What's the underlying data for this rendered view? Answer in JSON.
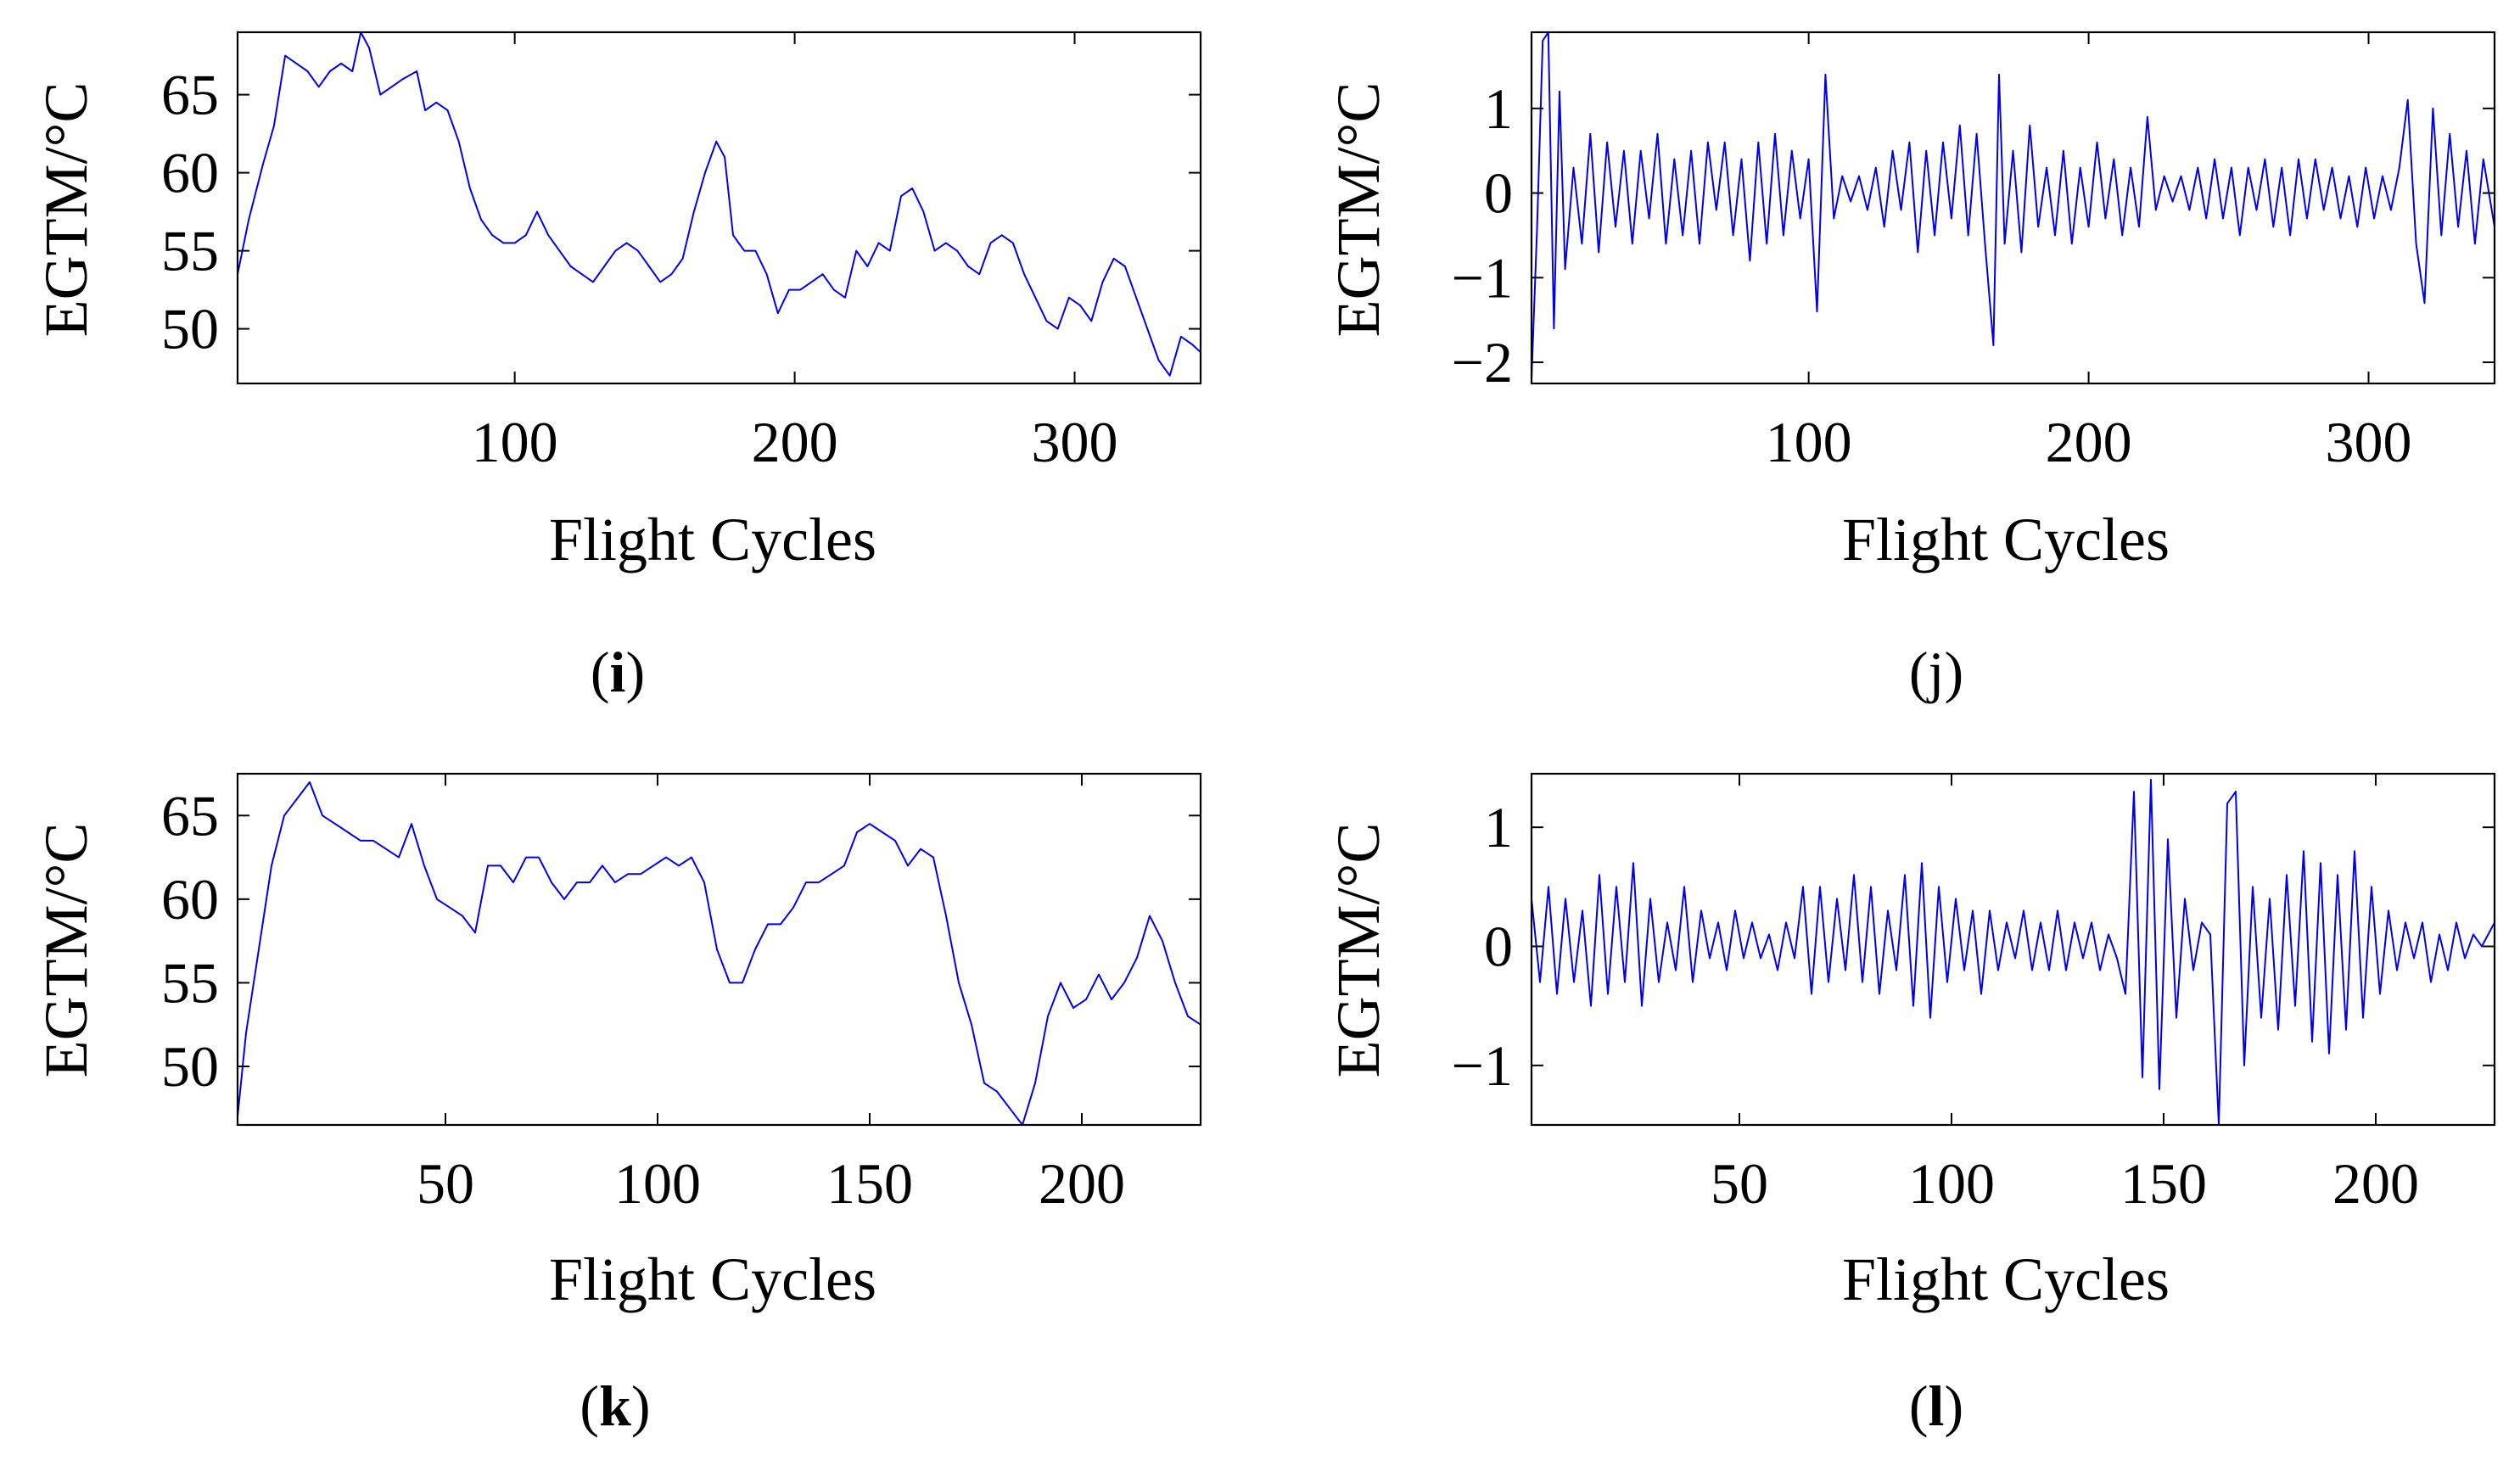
{
  "chart_data": [
    {
      "id": "i",
      "panel_label": "i",
      "type": "line",
      "xlabel": "Flight Cycles",
      "ylabel": "EGTM/°C",
      "xlim": [
        1,
        345
      ],
      "ylim": [
        46.5,
        69
      ],
      "xticks": [
        100,
        200,
        300
      ],
      "yticks": [
        50,
        55,
        60,
        65
      ],
      "line_color": "#0000ee",
      "series": [
        {
          "name": "EGTM",
          "x": [
            1,
            5,
            10,
            14,
            18,
            22,
            26,
            30,
            34,
            38,
            42,
            45,
            48,
            52,
            56,
            60,
            65,
            68,
            72,
            76,
            80,
            84,
            88,
            92,
            96,
            100,
            104,
            108,
            112,
            116,
            120,
            124,
            128,
            132,
            136,
            140,
            144,
            148,
            152,
            156,
            160,
            164,
            168,
            172,
            175,
            178,
            182,
            186,
            190,
            194,
            198,
            202,
            206,
            210,
            214,
            218,
            222,
            226,
            230,
            234,
            238,
            242,
            246,
            250,
            254,
            258,
            262,
            266,
            270,
            274,
            278,
            282,
            286,
            290,
            294,
            298,
            302,
            306,
            310,
            314,
            318,
            322,
            326,
            330,
            334,
            338,
            342,
            345
          ],
          "y": [
            53.5,
            57,
            60.5,
            63,
            67.5,
            67,
            66.5,
            65.5,
            66.5,
            67,
            66.5,
            69,
            68,
            65,
            65.5,
            66,
            66.5,
            64,
            64.5,
            64,
            62,
            59,
            57,
            56,
            55.5,
            55.5,
            56,
            57.5,
            56,
            55,
            54,
            53.5,
            53,
            54,
            55,
            55.5,
            55,
            54,
            53,
            53.5,
            54.5,
            57.5,
            60,
            62,
            61,
            56,
            55,
            55,
            53.5,
            51,
            52.5,
            52.5,
            53,
            53.5,
            52.5,
            52,
            55,
            54,
            55.5,
            55,
            58.5,
            59,
            57.5,
            55,
            55.5,
            55,
            54,
            53.5,
            55.5,
            56,
            55.5,
            53.5,
            52,
            50.5,
            50,
            52,
            51.5,
            50.5,
            53,
            54.5,
            54,
            52,
            50,
            48,
            47,
            49.5,
            49,
            48.5
          ]
        }
      ]
    },
    {
      "id": "j",
      "panel_label": "j",
      "type": "line",
      "xlabel": "Flight Cycles",
      "ylabel": "EGTM/°C",
      "xlim": [
        1,
        345
      ],
      "ylim": [
        -2.25,
        1.9
      ],
      "xticks": [
        100,
        200,
        300
      ],
      "yticks": [
        -2,
        -1,
        0,
        1
      ],
      "line_color": "#0000ee",
      "series": [
        {
          "name": "EGTM",
          "x": [
            1,
            3,
            5,
            7,
            9,
            11,
            13,
            16,
            19,
            22,
            25,
            28,
            31,
            34,
            37,
            40,
            43,
            46,
            49,
            52,
            55,
            58,
            61,
            64,
            67,
            70,
            73,
            76,
            79,
            82,
            85,
            88,
            91,
            94,
            97,
            100,
            103,
            106,
            109,
            112,
            115,
            118,
            121,
            124,
            127,
            130,
            133,
            136,
            139,
            142,
            145,
            148,
            151,
            154,
            157,
            160,
            163,
            166,
            168,
            170,
            173,
            176,
            179,
            182,
            185,
            188,
            191,
            194,
            197,
            200,
            203,
            206,
            209,
            212,
            215,
            218,
            221,
            224,
            227,
            230,
            233,
            236,
            239,
            242,
            245,
            248,
            251,
            254,
            257,
            260,
            263,
            266,
            269,
            272,
            275,
            278,
            281,
            284,
            287,
            290,
            293,
            296,
            299,
            302,
            305,
            308,
            311,
            314,
            317,
            320,
            323,
            326,
            329,
            332,
            335,
            338,
            341,
            345
          ],
          "y": [
            -2.2,
            -0.4,
            1.8,
            1.9,
            -1.6,
            1.2,
            -0.9,
            0.3,
            -0.6,
            0.7,
            -0.7,
            0.6,
            -0.4,
            0.5,
            -0.6,
            0.5,
            -0.3,
            0.7,
            -0.6,
            0.4,
            -0.5,
            0.5,
            -0.6,
            0.6,
            -0.2,
            0.6,
            -0.5,
            0.4,
            -0.8,
            0.6,
            -0.6,
            0.7,
            -0.5,
            0.5,
            -0.3,
            0.4,
            -1.4,
            1.4,
            -0.3,
            0.2,
            -0.1,
            0.2,
            -0.2,
            0.3,
            -0.4,
            0.5,
            -0.2,
            0.6,
            -0.7,
            0.5,
            -0.5,
            0.6,
            -0.3,
            0.8,
            -0.5,
            0.7,
            -0.6,
            -1.8,
            1.4,
            -0.6,
            0.5,
            -0.7,
            0.8,
            -0.4,
            0.3,
            -0.5,
            0.5,
            -0.6,
            0.3,
            -0.4,
            0.6,
            -0.3,
            0.4,
            -0.5,
            0.3,
            -0.4,
            0.9,
            -0.2,
            0.2,
            -0.1,
            0.2,
            -0.2,
            0.3,
            -0.3,
            0.4,
            -0.3,
            0.3,
            -0.5,
            0.3,
            -0.2,
            0.4,
            -0.4,
            0.3,
            -0.5,
            0.4,
            -0.3,
            0.4,
            -0.2,
            0.3,
            -0.3,
            0.2,
            -0.4,
            0.3,
            -0.3,
            0.2,
            -0.2,
            0.3,
            1.1,
            -0.6,
            -1.3,
            1.0,
            -0.5,
            0.7,
            -0.4,
            0.5,
            -0.6,
            0.4,
            -0.4
          ]
        }
      ]
    },
    {
      "id": "k",
      "panel_label": "k",
      "type": "line",
      "xlabel": "Flight Cycles",
      "ylabel": "EGTM/°C",
      "xlim": [
        1,
        228
      ],
      "ylim": [
        46.5,
        67.5
      ],
      "xticks": [
        50,
        100,
        150,
        200
      ],
      "yticks": [
        50,
        55,
        60,
        65
      ],
      "line_color": "#0000ee",
      "series": [
        {
          "name": "EGTM",
          "x": [
            1,
            3,
            6,
            9,
            12,
            15,
            18,
            21,
            24,
            27,
            30,
            33,
            36,
            39,
            42,
            45,
            48,
            51,
            54,
            57,
            60,
            63,
            66,
            69,
            72,
            75,
            78,
            81,
            84,
            87,
            90,
            93,
            96,
            99,
            102,
            105,
            108,
            111,
            114,
            117,
            120,
            123,
            126,
            129,
            132,
            135,
            138,
            141,
            144,
            147,
            150,
            153,
            156,
            159,
            162,
            165,
            168,
            171,
            174,
            177,
            180,
            183,
            186,
            189,
            192,
            195,
            198,
            201,
            204,
            207,
            210,
            213,
            216,
            219,
            222,
            225,
            228
          ],
          "y": [
            47,
            52,
            57,
            62,
            65,
            66,
            67,
            65,
            64.5,
            64,
            63.5,
            63.5,
            63,
            62.5,
            64.5,
            62,
            60,
            59.5,
            59,
            58,
            62,
            62,
            61,
            62.5,
            62.5,
            61,
            60,
            61,
            61,
            62,
            61,
            61.5,
            61.5,
            62,
            62.5,
            62,
            62.5,
            61,
            57,
            55,
            55,
            57,
            58.5,
            58.5,
            59.5,
            61,
            61,
            61.5,
            62,
            64,
            64.5,
            64,
            63.5,
            62,
            63,
            62.5,
            59,
            55,
            52.5,
            49,
            48.5,
            47.5,
            46.5,
            49,
            53,
            55,
            53.5,
            54,
            55.5,
            54,
            55,
            56.5,
            59,
            57.5,
            55,
            53,
            52.5
          ]
        }
      ]
    },
    {
      "id": "l",
      "panel_label": "l",
      "type": "line",
      "xlabel": "Flight Cycles",
      "ylabel": "EGTM/°C",
      "xlim": [
        1,
        228
      ],
      "ylim": [
        -1.5,
        1.45
      ],
      "xticks": [
        50,
        100,
        150,
        200
      ],
      "yticks": [
        -1,
        0,
        1
      ],
      "line_color": "#0000ee",
      "series": [
        {
          "name": "EGTM",
          "x": [
            1,
            3,
            5,
            7,
            9,
            11,
            13,
            15,
            17,
            19,
            21,
            23,
            25,
            27,
            29,
            31,
            33,
            35,
            37,
            39,
            41,
            43,
            45,
            47,
            49,
            51,
            53,
            55,
            57,
            59,
            61,
            63,
            65,
            67,
            69,
            71,
            73,
            75,
            77,
            79,
            81,
            83,
            85,
            87,
            89,
            91,
            93,
            95,
            97,
            99,
            101,
            103,
            105,
            107,
            109,
            111,
            113,
            115,
            117,
            119,
            121,
            123,
            125,
            127,
            129,
            131,
            133,
            135,
            137,
            139,
            141,
            143,
            145,
            147,
            149,
            151,
            153,
            155,
            157,
            159,
            161,
            163,
            165,
            167,
            169,
            171,
            173,
            175,
            177,
            179,
            181,
            183,
            185,
            187,
            189,
            191,
            193,
            195,
            197,
            199,
            201,
            203,
            205,
            207,
            209,
            211,
            213,
            215,
            217,
            219,
            221,
            223,
            225,
            228
          ],
          "y": [
            0.4,
            -0.3,
            0.5,
            -0.4,
            0.4,
            -0.3,
            0.3,
            -0.5,
            0.6,
            -0.4,
            0.5,
            -0.3,
            0.7,
            -0.5,
            0.4,
            -0.3,
            0.2,
            -0.2,
            0.5,
            -0.3,
            0.3,
            -0.1,
            0.2,
            -0.2,
            0.3,
            -0.1,
            0.2,
            -0.1,
            0.1,
            -0.2,
            0.2,
            -0.1,
            0.5,
            -0.4,
            0.5,
            -0.3,
            0.4,
            -0.2,
            0.6,
            -0.3,
            0.5,
            -0.4,
            0.3,
            -0.2,
            0.6,
            -0.5,
            0.7,
            -0.6,
            0.5,
            -0.3,
            0.4,
            -0.2,
            0.3,
            -0.4,
            0.3,
            -0.2,
            0.2,
            -0.1,
            0.3,
            -0.2,
            0.2,
            -0.2,
            0.3,
            -0.2,
            0.2,
            -0.1,
            0.2,
            -0.2,
            0.1,
            -0.1,
            -0.4,
            1.3,
            -1.1,
            1.4,
            -1.2,
            0.9,
            -0.6,
            0.4,
            -0.2,
            0.2,
            0.1,
            -1.5,
            1.2,
            1.3,
            -1.0,
            0.5,
            -0.6,
            0.4,
            -0.7,
            0.6,
            -0.5,
            0.8,
            -0.8,
            0.7,
            -0.9,
            0.6,
            -0.7,
            0.8,
            -0.6,
            0.5,
            -0.4,
            0.3,
            -0.2,
            0.2,
            -0.1,
            0.2,
            -0.3,
            0.1,
            -0.2,
            0.2,
            -0.1,
            0.1,
            0.0,
            0.2
          ]
        }
      ]
    }
  ]
}
